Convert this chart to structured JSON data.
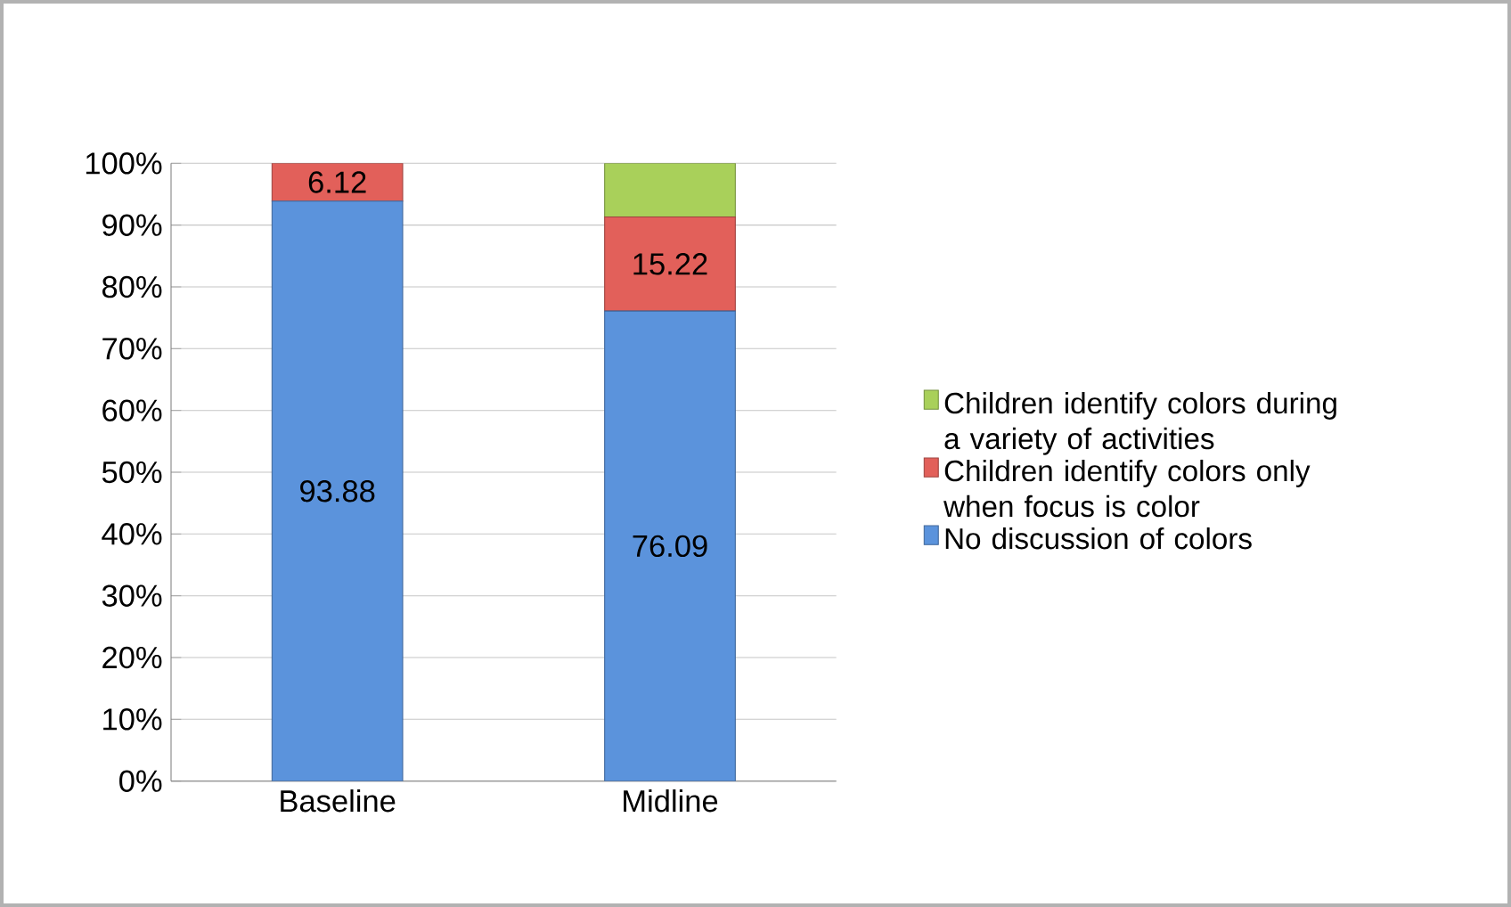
{
  "chart_data": {
    "type": "bar",
    "stacked": true,
    "categories": [
      "Baseline",
      "Midline"
    ],
    "series": [
      {
        "name": "No discussion of colors",
        "color": "#5b93dc",
        "values": [
          93.88,
          76.09
        ],
        "value_labels": [
          "93.88",
          "76.09"
        ]
      },
      {
        "name": "Children identify colors only when focus is color",
        "color": "#e2605a",
        "values": [
          6.12,
          15.22
        ],
        "value_labels": [
          "6.12",
          "15.22"
        ]
      },
      {
        "name": "Children identify colors during a variety of activities",
        "color": "#a9d05a",
        "values": [
          0,
          8.7
        ],
        "value_labels": [
          null,
          null
        ]
      }
    ],
    "ylim": [
      0,
      100
    ],
    "yticks": [
      {
        "value": 0,
        "label": "0%"
      },
      {
        "value": 10,
        "label": "10%"
      },
      {
        "value": 20,
        "label": "20%"
      },
      {
        "value": 30,
        "label": "30%"
      },
      {
        "value": 40,
        "label": "40%"
      },
      {
        "value": 50,
        "label": "50%"
      },
      {
        "value": 60,
        "label": "60%"
      },
      {
        "value": 70,
        "label": "70%"
      },
      {
        "value": 80,
        "label": "80%"
      },
      {
        "value": 90,
        "label": "90%"
      },
      {
        "value": 100,
        "label": "100%"
      }
    ],
    "grid": "y",
    "legend": "right"
  }
}
